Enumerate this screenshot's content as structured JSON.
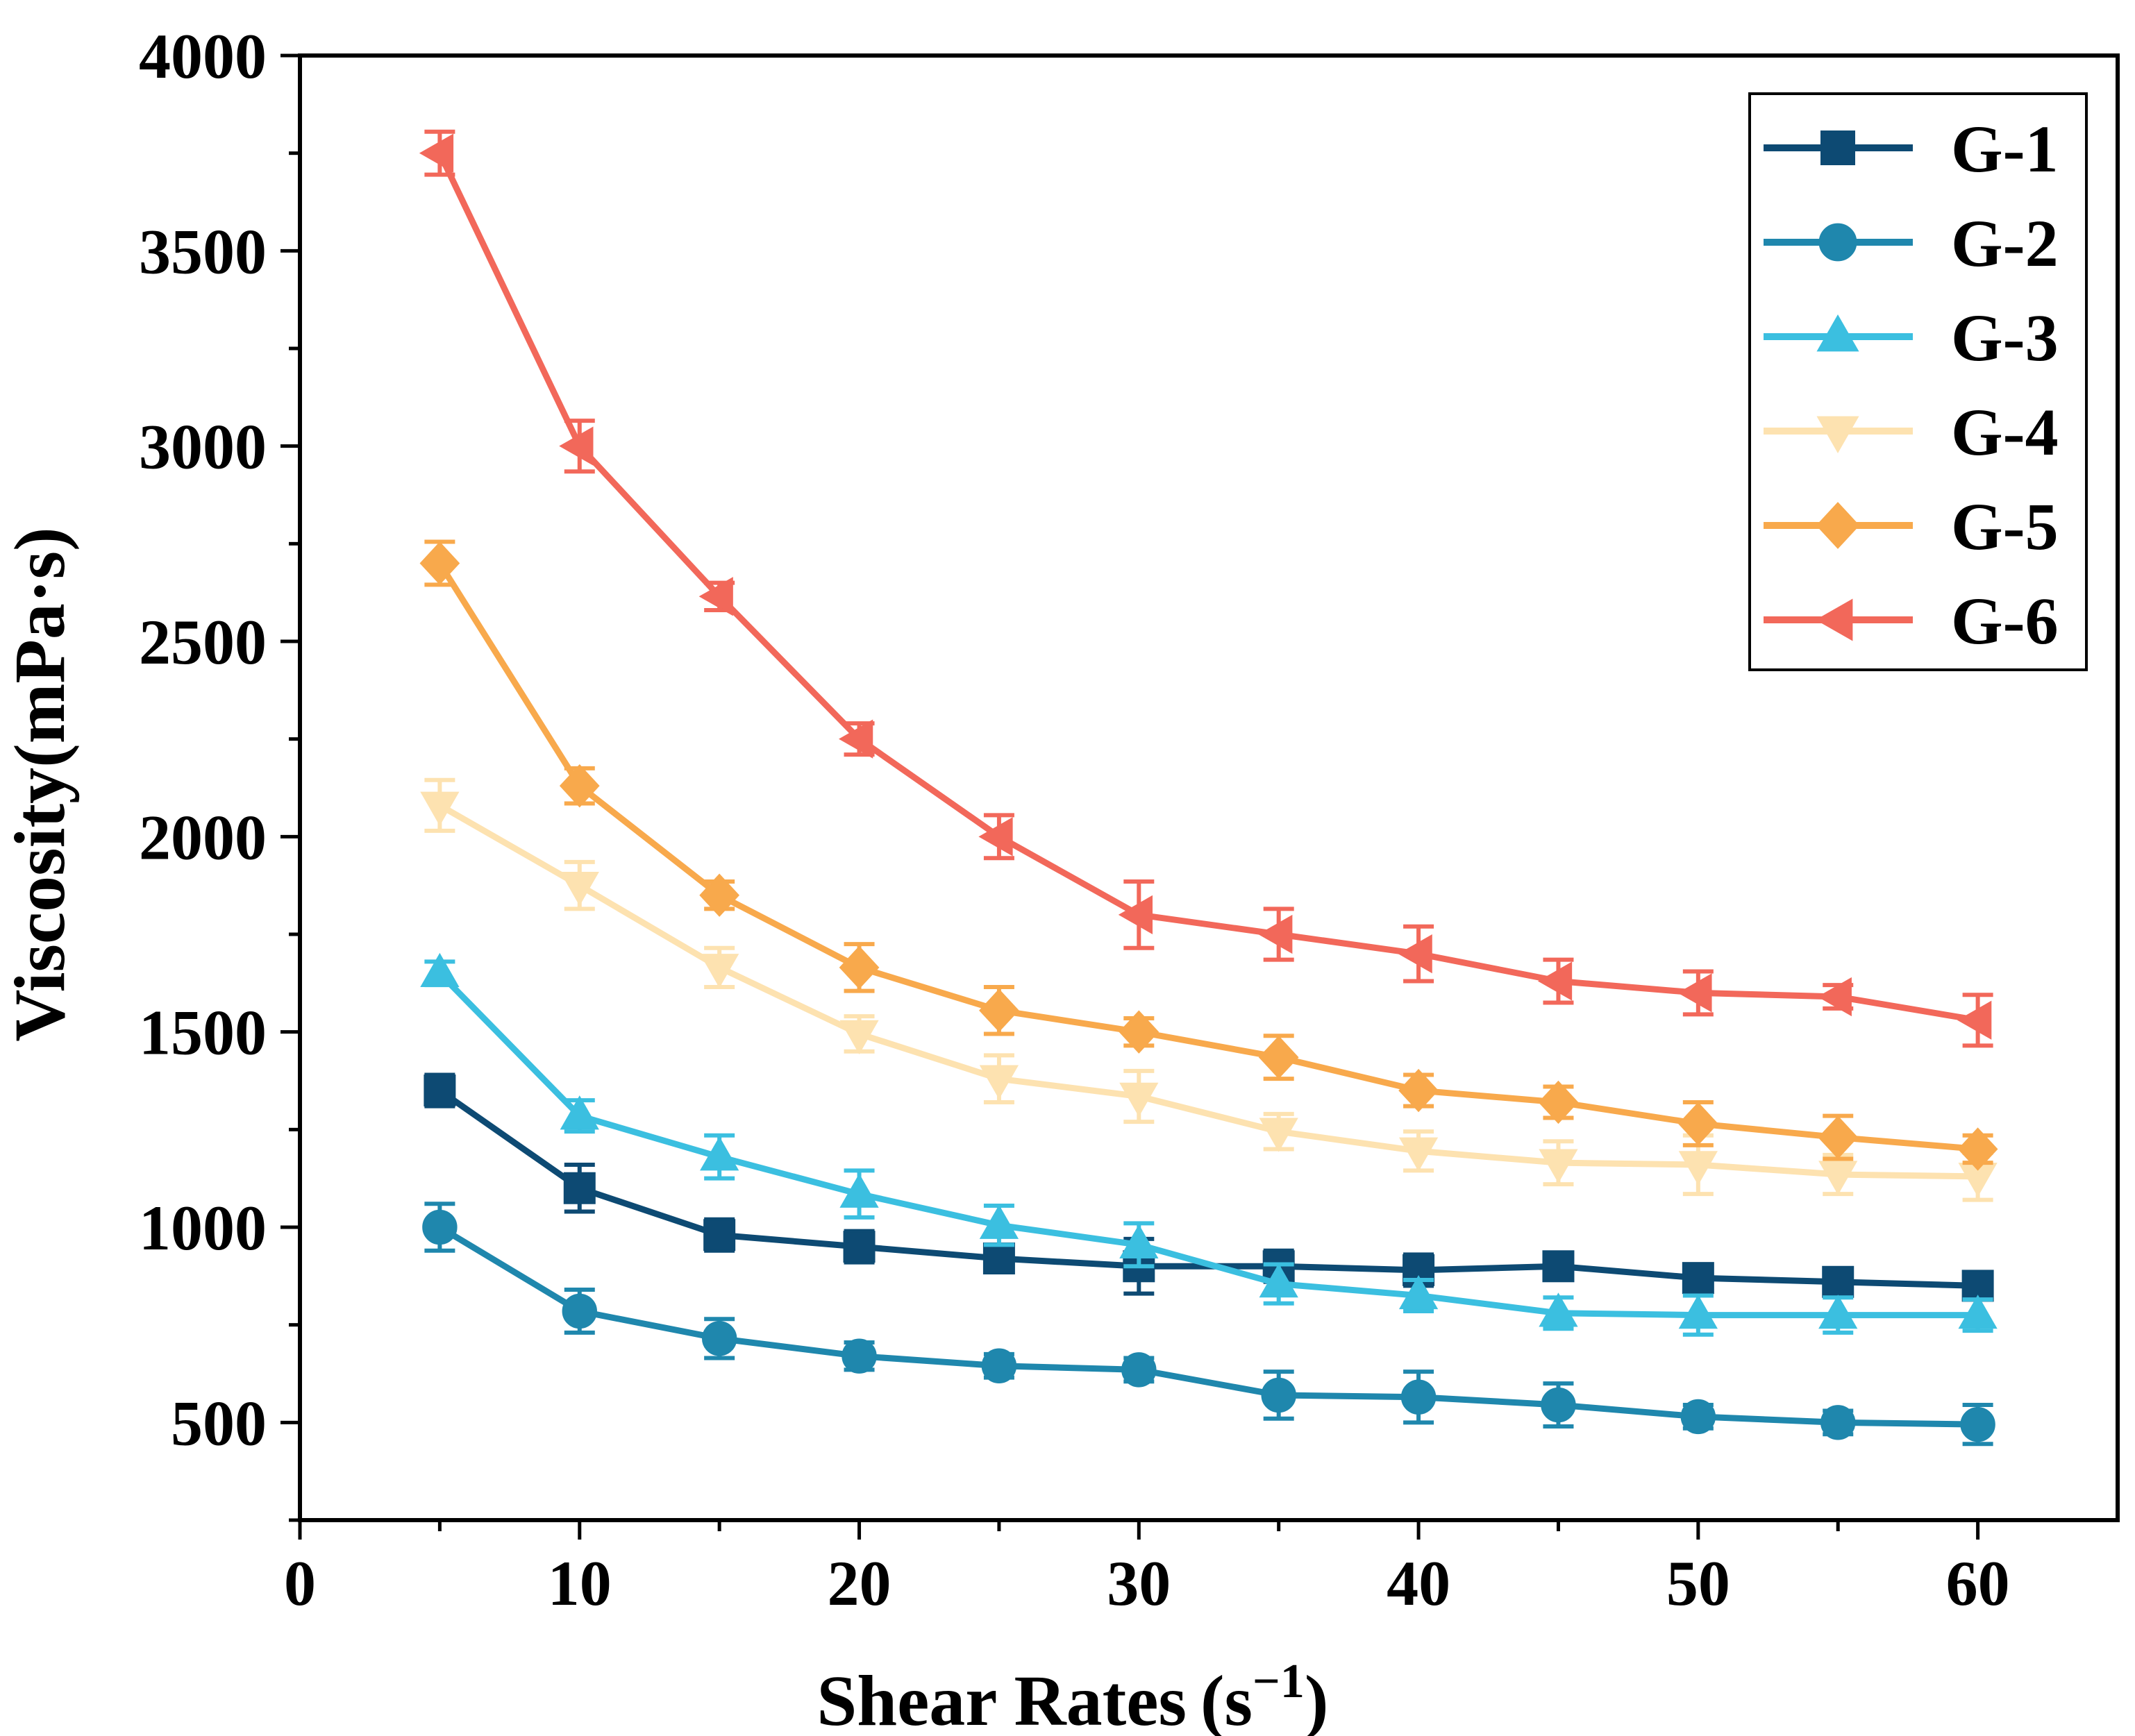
{
  "chart_data": {
    "type": "line",
    "title": "",
    "xlabel": "Shear Rates",
    "xlabel_unit": "(s",
    "xlabel_exp": "−1",
    "xlabel_close": ")",
    "ylabel": "Viscosity(mPa·s)",
    "xlim": [
      0,
      65
    ],
    "ylim": [
      250,
      4000
    ],
    "x_ticks": [
      0,
      10,
      20,
      30,
      40,
      50,
      60
    ],
    "y_ticks": [
      500,
      1000,
      1500,
      2000,
      2500,
      3000,
      3500,
      4000
    ],
    "legend_position": "top-right",
    "grid": false,
    "x": [
      5,
      10,
      15,
      20,
      25,
      30,
      35,
      40,
      45,
      50,
      55,
      60
    ],
    "series": [
      {
        "name": "G-1",
        "color": "#0d4a73",
        "marker": "square",
        "values": [
          1350,
          1100,
          980,
          950,
          920,
          900,
          900,
          890,
          900,
          870,
          860,
          850
        ],
        "errors": [
          40,
          60,
          40,
          40,
          30,
          70,
          40,
          40,
          30,
          30,
          30,
          30
        ]
      },
      {
        "name": "G-2",
        "color": "#1f87ad",
        "marker": "circle",
        "values": [
          1000,
          785,
          715,
          670,
          645,
          635,
          570,
          565,
          545,
          515,
          500,
          495
        ],
        "errors": [
          60,
          55,
          50,
          35,
          30,
          30,
          60,
          65,
          55,
          30,
          30,
          50
        ]
      },
      {
        "name": "G-3",
        "color": "#3bbfe0",
        "marker": "triangle-up",
        "values": [
          1650,
          1285,
          1180,
          1085,
          1005,
          955,
          855,
          825,
          780,
          775,
          775,
          775
        ],
        "errors": [
          30,
          40,
          55,
          60,
          50,
          55,
          50,
          40,
          40,
          50,
          45,
          40
        ]
      },
      {
        "name": "G-4",
        "color": "#fde2b0",
        "marker": "triangle-down",
        "values": [
          2080,
          1875,
          1665,
          1495,
          1380,
          1335,
          1245,
          1195,
          1165,
          1160,
          1135,
          1130
        ],
        "errors": [
          65,
          60,
          50,
          45,
          60,
          65,
          45,
          50,
          55,
          75,
          50,
          60
        ]
      },
      {
        "name": "G-5",
        "color": "#f8a94c",
        "marker": "diamond",
        "values": [
          2700,
          2130,
          1850,
          1665,
          1555,
          1500,
          1435,
          1350,
          1320,
          1265,
          1230,
          1200
        ],
        "errors": [
          55,
          45,
          35,
          60,
          60,
          35,
          55,
          40,
          40,
          55,
          55,
          35
        ]
      },
      {
        "name": "G-6",
        "color": "#f2685a",
        "marker": "triangle-left",
        "values": [
          3750,
          3000,
          2615,
          2250,
          2000,
          1800,
          1750,
          1700,
          1630,
          1600,
          1590,
          1530
        ],
        "errors": [
          55,
          65,
          35,
          40,
          55,
          85,
          65,
          70,
          55,
          55,
          30,
          65
        ]
      }
    ]
  }
}
